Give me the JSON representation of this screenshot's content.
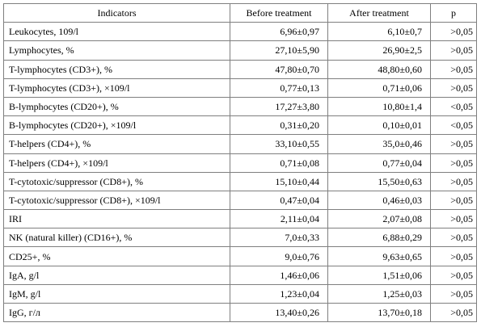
{
  "table": {
    "headers": [
      "Indicators",
      "Before treatment",
      "After treatment",
      "p"
    ],
    "rows": [
      {
        "indicator": "Leukocytes, 109/l",
        "before": "6,96±0,97",
        "after": "6,10±0,7",
        "p": ">0,05"
      },
      {
        "indicator": "Lymphocytes, %",
        "before": "27,10±5,90",
        "after": "26,90±2,5",
        "p": ">0,05"
      },
      {
        "indicator": "T-lymphocytes (CD3+), %",
        "before": "47,80±0,70",
        "after": "48,80±0,60",
        "p": ">0,05"
      },
      {
        "indicator": "T-lymphocytes (CD3+), ×109/l",
        "before": "0,77±0,13",
        "after": "0,71±0,06",
        "p": ">0,05"
      },
      {
        "indicator": "B-lymphocytes (CD20+), %",
        "before": "17,27±3,80",
        "after": "10,80±1,4",
        "p": "<0,05"
      },
      {
        "indicator": "B-lymphocytes (CD20+), ×109/l",
        "before": "0,31±0,20",
        "after": "0,10±0,01",
        "p": "<0,05"
      },
      {
        "indicator": "T-helpers (CD4+), %",
        "before": "33,10±0,55",
        "after": "35,0±0,46",
        "p": ">0,05"
      },
      {
        "indicator": "T-helpers (CD4+), ×109/l",
        "before": "0,71±0,08",
        "after": "0,77±0,04",
        "p": ">0,05"
      },
      {
        "indicator": "T-cytotoxic/suppressor (CD8+), %",
        "before": "15,10±0,44",
        "after": "15,50±0,63",
        "p": ">0,05"
      },
      {
        "indicator": "T-cytotoxic/suppressor (CD8+), ×109/l",
        "before": "0,47±0,04",
        "after": "0,46±0,03",
        "p": ">0,05"
      },
      {
        "indicator": "IRI",
        "before": "2,11±0,04",
        "after": "2,07±0,08",
        "p": ">0,05"
      },
      {
        "indicator": "NK (natural killer) (CD16+), %",
        "before": "7,0±0,33",
        "after": "6,88±0,29",
        "p": ">0,05"
      },
      {
        "indicator": "CD25+, %",
        "before": "9,0±0,76",
        "after": "9,63±0,65",
        "p": ">0,05"
      },
      {
        "indicator": "IgA, g/l",
        "before": "1,46±0,06",
        "after": "1,51±0,06",
        "p": ">0,05"
      },
      {
        "indicator": "IgM, g/l",
        "before": "1,23±0,04",
        "after": "1,25±0,03",
        "p": ">0,05"
      },
      {
        "indicator": "IgG, г/л",
        "before": "13,40±0,26",
        "after": "13,70±0,18",
        "p": ">0,05"
      }
    ]
  }
}
